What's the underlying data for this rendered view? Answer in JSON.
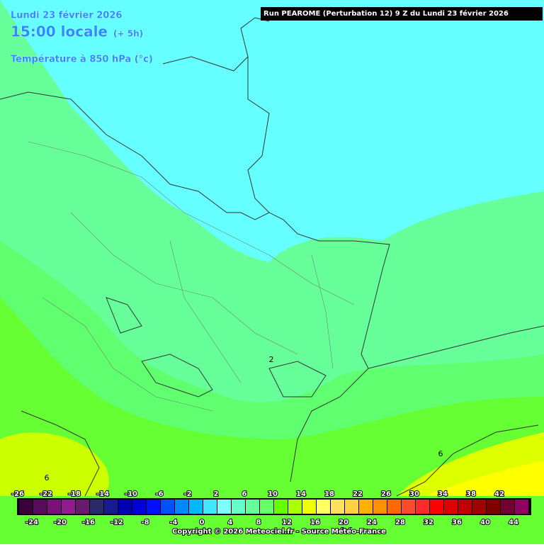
{
  "header": {
    "run": "Run PEAROME (Perturbation 12) 9 Z du Lundi 23 février 2026",
    "date": "Lundi 23 février 2026",
    "time": "15:00 locale",
    "offset": "(+ 5h)",
    "field": "Température à 850 hPa (°c)"
  },
  "map": {
    "labels": [
      "6",
      "2",
      "6"
    ]
  },
  "legend": {
    "values": [
      -26,
      -24,
      -22,
      -20,
      -18,
      -16,
      -14,
      -12,
      -10,
      -8,
      -6,
      -4,
      -2,
      0,
      2,
      4,
      6,
      8,
      10,
      12,
      14,
      16,
      18,
      20,
      22,
      24,
      26,
      28,
      30,
      32,
      34,
      36,
      38,
      40,
      42,
      44
    ],
    "colors": [
      "#3a003a",
      "#5a0a5a",
      "#7a107a",
      "#901a90",
      "#6a1a6a",
      "#2a2a6a",
      "#1a1a90",
      "#0000b0",
      "#0000d8",
      "#0010ff",
      "#0050ff",
      "#0088ff",
      "#00b8ff",
      "#40e8ff",
      "#80ffff",
      "#66ffcc",
      "#66ff99",
      "#66ff66",
      "#66ff00",
      "#aaff00",
      "#eeff00",
      "#ffff66",
      "#ffe060",
      "#ffd040",
      "#ffb000",
      "#ff9000",
      "#ff6a00",
      "#ff4a30",
      "#ff2a2a",
      "#ff0000",
      "#e00000",
      "#c00000",
      "#a00000",
      "#800000",
      "#700030",
      "#900060"
    ]
  },
  "footer": {
    "copyright": "Copyright © 2026 Meteociel.fr - Source Météo-France"
  }
}
